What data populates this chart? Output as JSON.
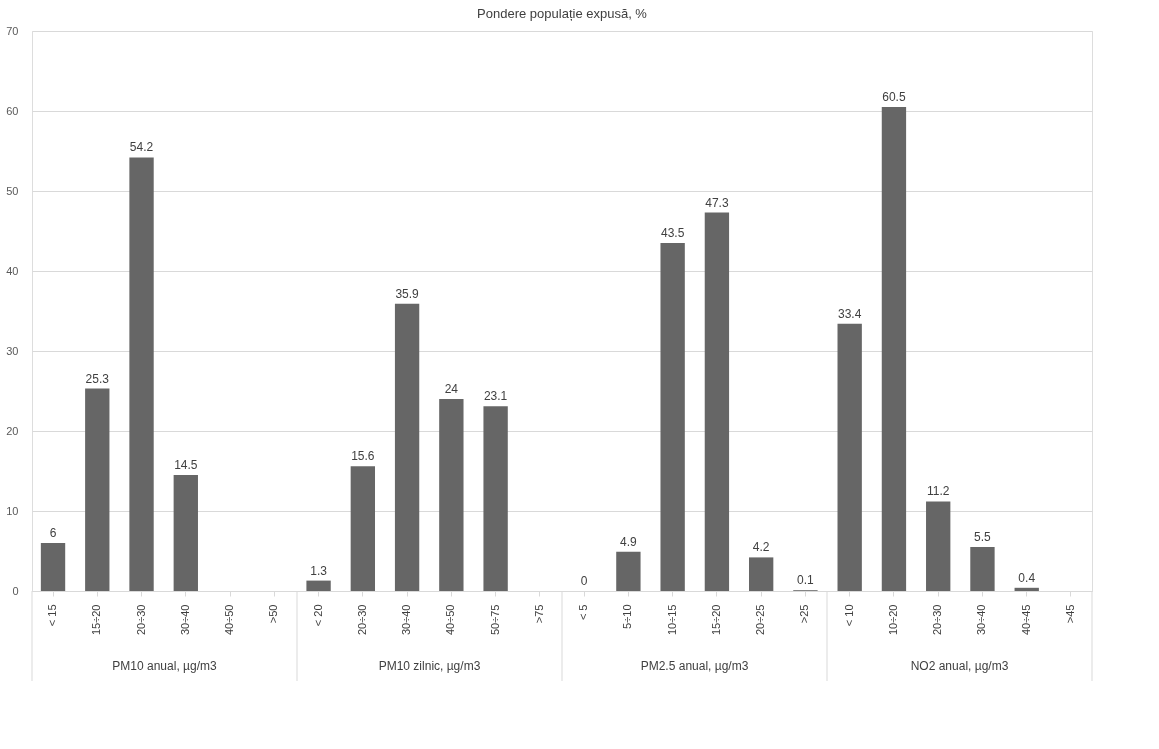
{
  "chart_data": {
    "type": "bar",
    "title": "Pondere populație expusă, %",
    "categories": [
      "< 15",
      "15÷20",
      "20÷30",
      "30÷40",
      "40÷50",
      ">50",
      "< 20",
      "20÷30",
      "30÷40",
      "40÷50",
      "50÷75",
      ">75",
      "< 5",
      "5÷10",
      "10÷15",
      "15÷20",
      "20÷25",
      ">25",
      "< 10",
      "10÷20",
      "20÷30",
      "30÷40",
      "40÷45",
      ">45"
    ],
    "values": [
      6,
      25.3,
      54.2,
      14.5,
      null,
      null,
      1.3,
      15.6,
      35.9,
      24,
      23.1,
      null,
      0,
      4.9,
      43.5,
      47.3,
      4.2,
      0.1,
      33.4,
      60.5,
      11.2,
      5.5,
      0.4,
      null
    ],
    "color": "#666666",
    "ylim": [
      0,
      70
    ],
    "yticks": [
      0,
      10,
      20,
      30,
      40,
      50,
      60,
      70
    ],
    "grid": "y",
    "data_labels": true,
    "annotations": [
      "PM10 anual, µg/m3",
      "PM10 zilnic, µg/m3",
      "PM2.5 anual, µg/m3",
      "NO2 anual, µg/m3"
    ]
  }
}
